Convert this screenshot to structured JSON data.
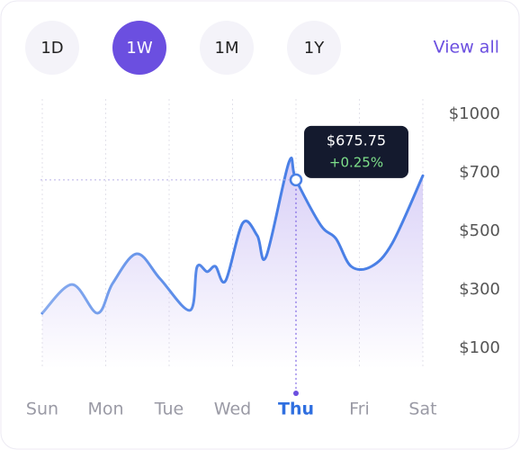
{
  "ui": {
    "ranges": [
      "1D",
      "1W",
      "1M",
      "1Y"
    ],
    "active_range": "1W",
    "link": "View all"
  },
  "chart_data": {
    "type": "line",
    "x": [
      0,
      0.47,
      0.87,
      1.11,
      1.49,
      1.86,
      2.33,
      2.44,
      2.6,
      2.73,
      2.89,
      3.16,
      3.39,
      3.53,
      3.89,
      4,
      4.39,
      4.63,
      4.87,
      5.19,
      5.52,
      6
    ],
    "values": [
      220,
      318,
      220,
      322,
      423,
      337,
      230,
      378,
      362,
      380,
      331,
      528,
      485,
      414,
      755,
      675.75,
      521,
      475,
      380,
      380,
      460,
      690
    ],
    "color": "#4a80e6",
    "area_color": "#b7a6f0",
    "xlim": [
      0,
      6
    ],
    "xticks": [
      {
        "value": 0,
        "label": "Sun"
      },
      {
        "value": 1,
        "label": "Mon"
      },
      {
        "value": 2,
        "label": "Tue"
      },
      {
        "value": 3,
        "label": "Wed"
      },
      {
        "value": 4,
        "label": "Thu"
      },
      {
        "value": 5,
        "label": "Fri"
      },
      {
        "value": 6,
        "label": "Sat"
      }
    ],
    "ylim": [
      100,
      1000
    ],
    "yticks": [
      {
        "value": 1000,
        "label": "$1000"
      },
      {
        "value": 700,
        "label": "$700"
      },
      {
        "value": 500,
        "label": "$500"
      },
      {
        "value": 300,
        "label": "$300"
      },
      {
        "value": 100,
        "label": "$100"
      }
    ],
    "grid": true,
    "tooltip": {
      "x": 4,
      "value": 675.75,
      "label": "$675.75",
      "change": "+0.25%"
    }
  }
}
